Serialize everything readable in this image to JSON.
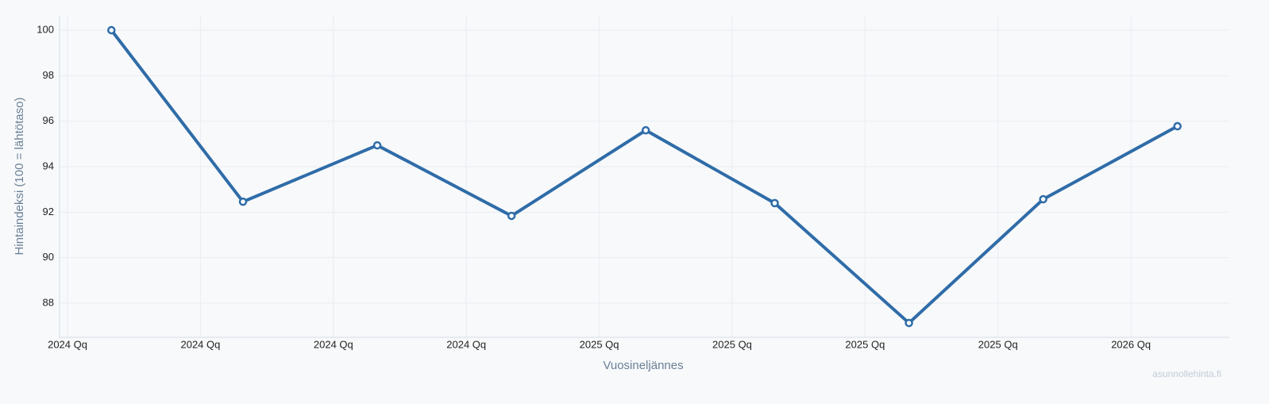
{
  "chart_data": {
    "type": "line",
    "x_label": "Vuosineljännes",
    "y_label": "Hintaindeksi (100 = lähtötaso)",
    "watermark": "asunnollehinta.fi",
    "x": [
      0.33,
      1.32,
      2.33,
      3.34,
      4.35,
      5.32,
      6.33,
      7.34,
      8.35
    ],
    "series": [
      {
        "name": "Hintaindeksi",
        "color": "#2f6ca8",
        "values": [
          100,
          92.46,
          94.94,
          91.84,
          95.6,
          92.4,
          87.13,
          92.57,
          95.78
        ]
      }
    ],
    "xlim": [
      -0.06,
      8.74
    ],
    "xticks": [
      {
        "value": 0,
        "label": "2024 Qq"
      },
      {
        "value": 1,
        "label": "2024 Qq"
      },
      {
        "value": 2,
        "label": "2024 Qq"
      },
      {
        "value": 3,
        "label": "2024 Qq"
      },
      {
        "value": 4,
        "label": "2025 Qq"
      },
      {
        "value": 5,
        "label": "2025 Qq"
      },
      {
        "value": 6,
        "label": "2025 Qq"
      },
      {
        "value": 7,
        "label": "2025 Qq"
      },
      {
        "value": 8,
        "label": "2026 Qq"
      }
    ],
    "ylim": [
      86.5,
      100.63
    ],
    "yticks": [
      88,
      90,
      92,
      94,
      96,
      98,
      100
    ],
    "grid": true
  }
}
